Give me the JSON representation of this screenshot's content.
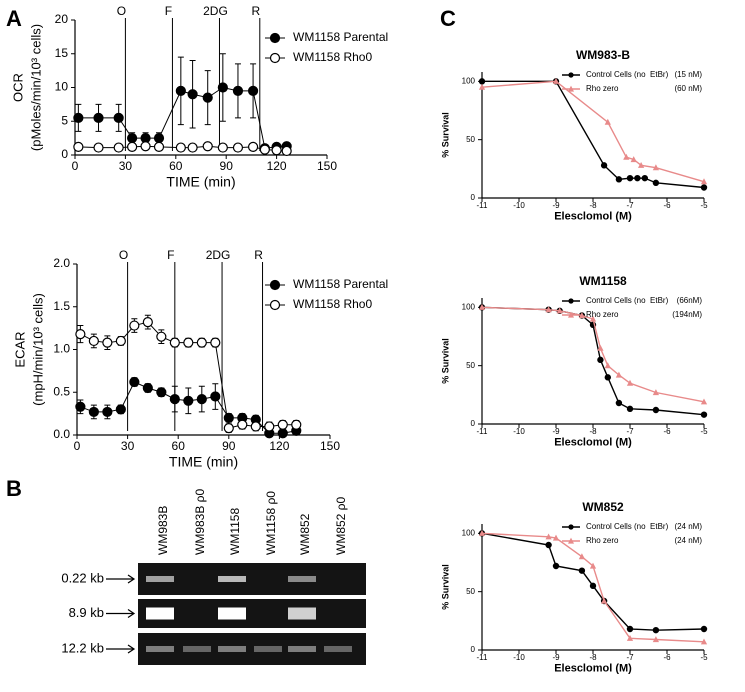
{
  "panel_labels": {
    "a": "A",
    "b": "B",
    "c": "C"
  },
  "chart_data": [
    {
      "type": "line",
      "xlabel": "TIME (min)",
      "ylabel": [
        "OCR",
        "(pMoles/min/10³ cells)"
      ],
      "xlim": [
        0,
        150
      ],
      "xticks": [
        0,
        30,
        60,
        90,
        120,
        150
      ],
      "ylim": [
        0,
        20
      ],
      "yticks": [
        0,
        5,
        10,
        15,
        20
      ],
      "annotations": [
        {
          "label": "O",
          "x": 30
        },
        {
          "label": "F",
          "x": 58
        },
        {
          "label": "2DG",
          "x": 86
        },
        {
          "label": "R",
          "x": 110
        }
      ],
      "series": [
        {
          "name": "WM1158 Parental",
          "color": "#000000",
          "marker": "filled-circle",
          "x": [
            2,
            14,
            26,
            34,
            42,
            50,
            63,
            70,
            79,
            88,
            97,
            106,
            113,
            120,
            126
          ],
          "values": [
            5.5,
            5.5,
            5.5,
            2.5,
            2.5,
            2.5,
            9.5,
            9,
            8.5,
            10,
            9.5,
            9.5,
            1,
            1.2,
            1.3
          ],
          "errors": [
            2,
            2,
            2,
            0.8,
            0.8,
            0.8,
            5,
            5,
            4,
            5,
            4,
            4,
            0.5,
            0.5,
            0.5
          ]
        },
        {
          "name": "WM1158 Rho0",
          "color": "#000000",
          "marker": "open-circle",
          "x": [
            2,
            14,
            26,
            34,
            42,
            50,
            63,
            70,
            79,
            88,
            97,
            106,
            113,
            120,
            126
          ],
          "values": [
            1.2,
            1.1,
            1.1,
            1.2,
            1.3,
            1.2,
            1.1,
            1.1,
            1.3,
            1.1,
            1.1,
            1.2,
            0.8,
            0.7,
            0.6
          ],
          "errors": [
            0.3,
            0.3,
            0.3,
            0.3,
            0.3,
            0.3,
            0.3,
            0.3,
            0.3,
            0.3,
            0.3,
            0.3,
            0.5,
            0.3,
            0.3
          ]
        }
      ]
    },
    {
      "type": "line",
      "xlabel": "TIME (min)",
      "ylabel": [
        "ECAR",
        "(mpH/min/10³ cells)"
      ],
      "xlim": [
        0,
        150
      ],
      "xticks": [
        0,
        30,
        60,
        90,
        120,
        150
      ],
      "ylim": [
        0,
        2
      ],
      "yticks": [
        {
          "value": 0,
          "label": "0.0"
        },
        {
          "value": 0.5,
          "label": "0.5"
        },
        {
          "value": 1,
          "label": "1.0"
        },
        {
          "value": 1.5,
          "label": "1.5"
        },
        {
          "value": 2,
          "label": "2.0"
        }
      ],
      "annotations": [
        {
          "label": "O",
          "x": 30
        },
        {
          "label": "F",
          "x": 58
        },
        {
          "label": "2DG",
          "x": 86
        },
        {
          "label": "R",
          "x": 110
        }
      ],
      "series": [
        {
          "name": "WM1158 Parental",
          "color": "#000000",
          "marker": "filled-circle",
          "x": [
            2,
            10,
            18,
            26,
            34,
            42,
            50,
            58,
            66,
            74,
            82,
            90,
            98,
            106,
            114,
            122,
            130
          ],
          "values": [
            0.33,
            0.27,
            0.27,
            0.3,
            0.62,
            0.55,
            0.5,
            0.42,
            0.4,
            0.42,
            0.45,
            0.2,
            0.2,
            0.18,
            0.02,
            0.02,
            0.05
          ],
          "errors": [
            0.08,
            0.08,
            0.08,
            0.05,
            0.05,
            0.05,
            0.05,
            0.15,
            0.15,
            0.15,
            0.15,
            0.05,
            0.05,
            0.05,
            0.03,
            0.03,
            0.03
          ]
        },
        {
          "name": "WM1158 Rho0",
          "color": "#000000",
          "marker": "open-circle",
          "x": [
            2,
            10,
            18,
            26,
            34,
            42,
            50,
            58,
            66,
            74,
            82,
            90,
            98,
            106,
            114,
            122,
            130
          ],
          "values": [
            1.18,
            1.1,
            1.08,
            1.1,
            1.28,
            1.32,
            1.15,
            1.08,
            1.08,
            1.08,
            1.08,
            0.08,
            0.12,
            0.1,
            0.1,
            0.12,
            0.12
          ],
          "errors": [
            0.1,
            0.08,
            0.08,
            0.05,
            0.08,
            0.08,
            0.08,
            0.05,
            0.05,
            0.05,
            0.05,
            0.05,
            0.05,
            0.05,
            0.05,
            0.05,
            0.05
          ]
        }
      ]
    },
    {
      "type": "line",
      "title": "WM983-B",
      "xlabel": "Elesclomol (M)",
      "ylabel": "% Survival",
      "xlim": [
        -11,
        -5
      ],
      "xticks": [
        -11,
        -10,
        -9,
        -8,
        -7,
        -6,
        -5
      ],
      "ylim": [
        0,
        108
      ],
      "yticks": [
        0,
        50,
        100
      ],
      "series": [
        {
          "name": "Control Cells (no  EtBr)",
          "ic50": "(15 nM)",
          "color": "#000000",
          "marker": "circle",
          "x": [
            -11,
            -9,
            -7.7,
            -7.3,
            -7,
            -6.8,
            -6.6,
            -6.3,
            -5
          ],
          "values": [
            100,
            100,
            28,
            16,
            17,
            17,
            17,
            13,
            9
          ]
        },
        {
          "name": "Rho zero",
          "ic50": "(60 nM)",
          "color": "#e88a8a",
          "marker": "triangle",
          "x": [
            -11,
            -9,
            -7.6,
            -7.1,
            -6.9,
            -6.7,
            -6.3,
            -5
          ],
          "values": [
            95,
            100,
            65,
            35,
            33,
            28,
            26,
            14
          ]
        }
      ]
    },
    {
      "type": "line",
      "title": "WM1158",
      "xlabel": "Elesclomol (M)",
      "ylabel": "% Survival",
      "xlim": [
        -11,
        -5
      ],
      "xticks": [
        -11,
        -10,
        -9,
        -8,
        -7,
        -6,
        -5
      ],
      "ylim": [
        0,
        108
      ],
      "yticks": [
        0,
        50,
        100
      ],
      "series": [
        {
          "name": "Control Cells (no  EtBr)",
          "ic50": "(66nM)",
          "color": "#000000",
          "marker": "circle",
          "x": [
            -11,
            -9.2,
            -8.9,
            -8.3,
            -8,
            -7.8,
            -7.6,
            -7.3,
            -7,
            -6.3,
            -5
          ],
          "values": [
            100,
            98,
            97,
            93,
            85,
            55,
            40,
            18,
            13,
            12,
            8
          ]
        },
        {
          "name": "Rho zero",
          "ic50": "(194nM)",
          "color": "#e88a8a",
          "marker": "triangle",
          "x": [
            -11,
            -9.2,
            -8.9,
            -8.3,
            -8,
            -7.8,
            -7.6,
            -7.3,
            -7,
            -6.3,
            -5
          ],
          "values": [
            100,
            98,
            97,
            93,
            90,
            65,
            50,
            42,
            35,
            27,
            19
          ]
        }
      ]
    },
    {
      "type": "line",
      "title": "WM852",
      "xlabel": "Elesclomol (M)",
      "ylabel": "% Survival",
      "xlim": [
        -11,
        -5
      ],
      "xticks": [
        -11,
        -10,
        -9,
        -8,
        -7,
        -6,
        -5
      ],
      "ylim": [
        0,
        108
      ],
      "yticks": [
        0,
        50,
        100
      ],
      "series": [
        {
          "name": "Control Cells (no  EtBr)",
          "ic50": "(24 nM)",
          "color": "#000000",
          "marker": "circle",
          "x": [
            -11,
            -9.2,
            -9,
            -8.3,
            -8,
            -7.7,
            -7,
            -6.3,
            -5
          ],
          "values": [
            100,
            90,
            72,
            68,
            55,
            42,
            18,
            17,
            18
          ]
        },
        {
          "name": "Rho zero",
          "ic50": "(24 nM)",
          "color": "#e88a8a",
          "marker": "triangle",
          "x": [
            -11,
            -9.2,
            -9,
            -8.3,
            -8,
            -7.7,
            -7,
            -6.3,
            -5
          ],
          "values": [
            100,
            97,
            96,
            80,
            72,
            42,
            10,
            9,
            7
          ]
        }
      ]
    }
  ],
  "gel": {
    "lanes": [
      "WM983B",
      "WM983B ρ0",
      "WM1158",
      "WM1158 ρ0",
      "WM852",
      "WM852 ρ0"
    ],
    "rows": [
      "0.22 kb",
      "8.9 kb",
      "12.2 kb"
    ]
  }
}
